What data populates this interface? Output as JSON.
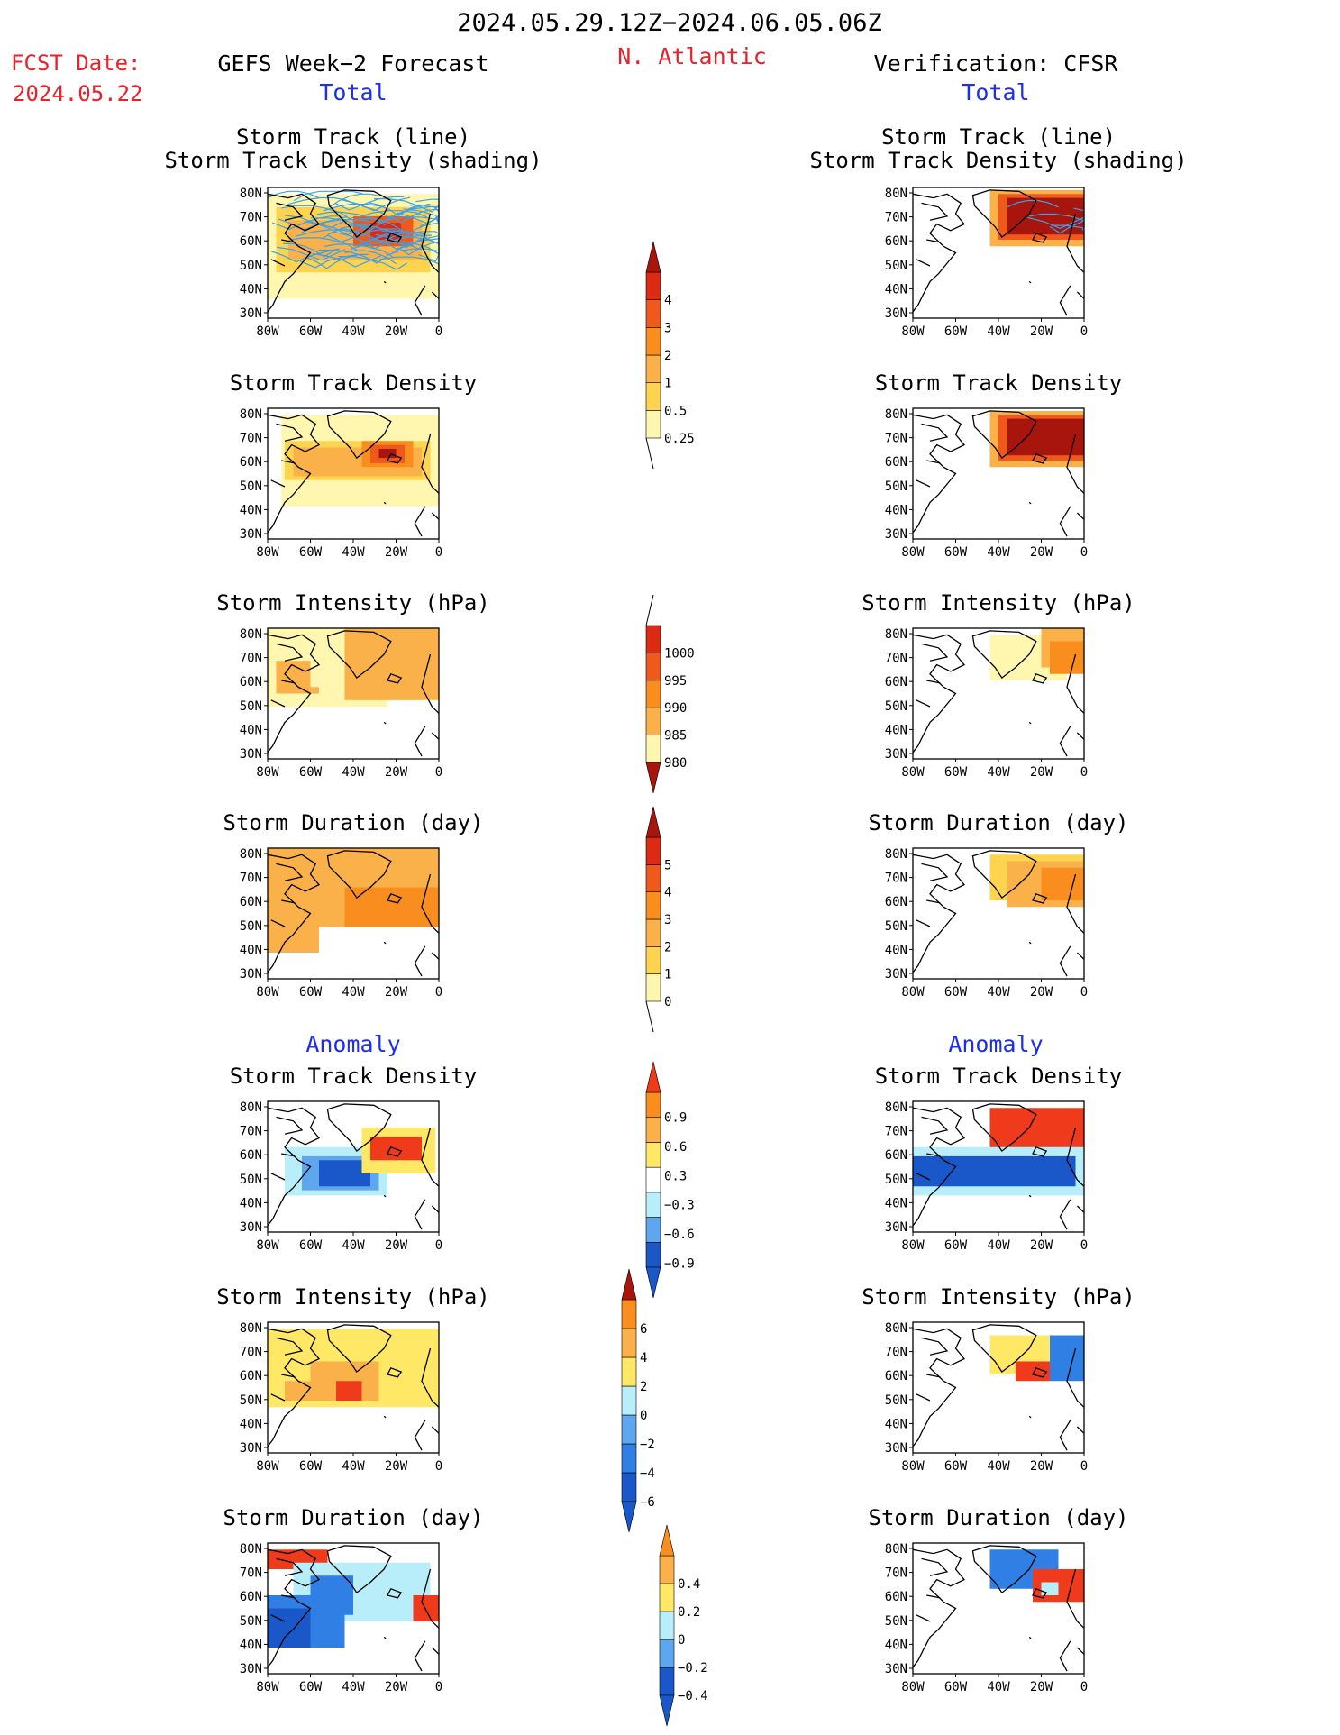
{
  "header": {
    "date_range": "2024.05.29.12Z−2024.06.05.06Z",
    "fcst_label": "FCST Date:",
    "fcst_date": "2024.05.22",
    "left_title": "GEFS Week−2 Forecast",
    "region": "N. Atlantic",
    "right_title": "Verification: CFSR",
    "total_left": "Total",
    "total_right": "Total",
    "anomaly_left": "Anomaly",
    "anomaly_right": "Anomaly"
  },
  "colors": {
    "red_text": "#e8222a",
    "blue_text": "#1c2ef0",
    "track_line": "#3aa2e8",
    "total_scale": [
      "#fff6b0",
      "#fdd34f",
      "#fbb14a",
      "#f98e1e",
      "#ef5a1c",
      "#dc2a14",
      "#a8150c"
    ],
    "anom_warm": [
      "#fee866",
      "#fbb14a",
      "#f98e1e",
      "#ef3a1c",
      "#a8150c"
    ],
    "anom_cool": [
      "#b8eefa",
      "#8fd2f6",
      "#5ea6ee",
      "#2f7fe4",
      "#1a57c8"
    ]
  },
  "chart_data": [
    {
      "type": "heatmap",
      "id": "fc-track",
      "title": [
        "Storm Track (line)",
        "Storm Track Density (shading)"
      ],
      "lat_ticks": [
        "80N",
        "70N",
        "60N",
        "50N",
        "40N",
        "30N"
      ],
      "lon_ticks": [
        "80W",
        "60W",
        "40W",
        "20W",
        "0"
      ],
      "has_tracks": true
    },
    {
      "type": "heatmap",
      "id": "fc-density",
      "title": [
        "Storm Track Density"
      ],
      "lat_ticks": [
        "80N",
        "70N",
        "60N",
        "50N",
        "40N",
        "30N"
      ],
      "lon_ticks": [
        "80W",
        "60W",
        "40W",
        "20W",
        "0"
      ]
    },
    {
      "type": "heatmap",
      "id": "fc-intensity",
      "title": [
        "Storm Intensity (hPa)"
      ],
      "lat_ticks": [
        "80N",
        "70N",
        "60N",
        "50N",
        "40N",
        "30N"
      ],
      "lon_ticks": [
        "80W",
        "60W",
        "40W",
        "20W",
        "0"
      ]
    },
    {
      "type": "heatmap",
      "id": "fc-duration",
      "title": [
        "Storm Duration (day)"
      ],
      "lat_ticks": [
        "80N",
        "70N",
        "60N",
        "50N",
        "40N",
        "30N"
      ],
      "lon_ticks": [
        "80W",
        "60W",
        "40W",
        "20W",
        "0"
      ]
    },
    {
      "type": "heatmap",
      "id": "fc-anom-density",
      "title": [
        "Storm Track Density"
      ],
      "lat_ticks": [
        "80N",
        "70N",
        "60N",
        "50N",
        "40N",
        "30N"
      ],
      "lon_ticks": [
        "80W",
        "60W",
        "40W",
        "20W",
        "0"
      ]
    },
    {
      "type": "heatmap",
      "id": "fc-anom-intensity",
      "title": [
        "Storm Intensity (hPa)"
      ],
      "lat_ticks": [
        "80N",
        "70N",
        "60N",
        "50N",
        "40N",
        "30N"
      ],
      "lon_ticks": [
        "80W",
        "60W",
        "40W",
        "20W",
        "0"
      ]
    },
    {
      "type": "heatmap",
      "id": "fc-anom-duration",
      "title": [
        "Storm Duration (day)"
      ],
      "lat_ticks": [
        "80N",
        "70N",
        "60N",
        "50N",
        "40N",
        "30N"
      ],
      "lon_ticks": [
        "80W",
        "60W",
        "40W",
        "20W",
        "0"
      ]
    },
    {
      "type": "heatmap",
      "id": "vf-track",
      "title": [
        "Storm Track (line)",
        "Storm Track Density (shading)"
      ],
      "lat_ticks": [
        "80N",
        "70N",
        "60N",
        "50N",
        "40N",
        "30N"
      ],
      "lon_ticks": [
        "80W",
        "60W",
        "40W",
        "20W",
        "0"
      ],
      "has_tracks": true
    },
    {
      "type": "heatmap",
      "id": "vf-density",
      "title": [
        "Storm Track Density"
      ],
      "lat_ticks": [
        "80N",
        "70N",
        "60N",
        "50N",
        "40N",
        "30N"
      ],
      "lon_ticks": [
        "80W",
        "60W",
        "40W",
        "20W",
        "0"
      ]
    },
    {
      "type": "heatmap",
      "id": "vf-intensity",
      "title": [
        "Storm Intensity (hPa)"
      ],
      "lat_ticks": [
        "80N",
        "70N",
        "60N",
        "50N",
        "40N",
        "30N"
      ],
      "lon_ticks": [
        "80W",
        "60W",
        "40W",
        "20W",
        "0"
      ]
    },
    {
      "type": "heatmap",
      "id": "vf-duration",
      "title": [
        "Storm Duration (day)"
      ],
      "lat_ticks": [
        "80N",
        "70N",
        "60N",
        "50N",
        "40N",
        "30N"
      ],
      "lon_ticks": [
        "80W",
        "60W",
        "40W",
        "20W",
        "0"
      ]
    },
    {
      "type": "heatmap",
      "id": "vf-anom-density",
      "title": [
        "Storm Track Density"
      ],
      "lat_ticks": [
        "80N",
        "70N",
        "60N",
        "50N",
        "40N",
        "30N"
      ],
      "lon_ticks": [
        "80W",
        "60W",
        "40W",
        "20W",
        "0"
      ]
    },
    {
      "type": "heatmap",
      "id": "vf-anom-intensity",
      "title": [
        "Storm Intensity (hPa)"
      ],
      "lat_ticks": [
        "80N",
        "70N",
        "60N",
        "50N",
        "40N",
        "30N"
      ],
      "lon_ticks": [
        "80W",
        "60W",
        "40W",
        "20W",
        "0"
      ]
    },
    {
      "type": "heatmap",
      "id": "vf-anom-duration",
      "title": [
        "Storm Duration (day)"
      ],
      "lat_ticks": [
        "80N",
        "70N",
        "60N",
        "50N",
        "40N",
        "30N"
      ],
      "lon_ticks": [
        "80W",
        "60W",
        "40W",
        "20W",
        "0"
      ]
    }
  ],
  "colorbars": [
    {
      "id": "cb-density",
      "labels": [
        "4",
        "3",
        "2",
        "1",
        "0.5",
        "0.25"
      ]
    },
    {
      "id": "cb-intensity",
      "labels": [
        "1000",
        "995",
        "990",
        "985",
        "980"
      ]
    },
    {
      "id": "cb-duration",
      "labels": [
        "5",
        "4",
        "3",
        "2",
        "1",
        "0"
      ]
    },
    {
      "id": "cb-anom-density",
      "labels": [
        "0.9",
        "0.6",
        "0.3",
        "−0.3",
        "−0.6",
        "−0.9"
      ]
    },
    {
      "id": "cb-anom-intensity",
      "labels": [
        "6",
        "4",
        "2",
        "0",
        "−2",
        "−4",
        "−6"
      ]
    },
    {
      "id": "cb-anom-duration",
      "labels": [
        "0.4",
        "0.2",
        "0",
        "−0.2",
        "−0.4"
      ]
    }
  ]
}
